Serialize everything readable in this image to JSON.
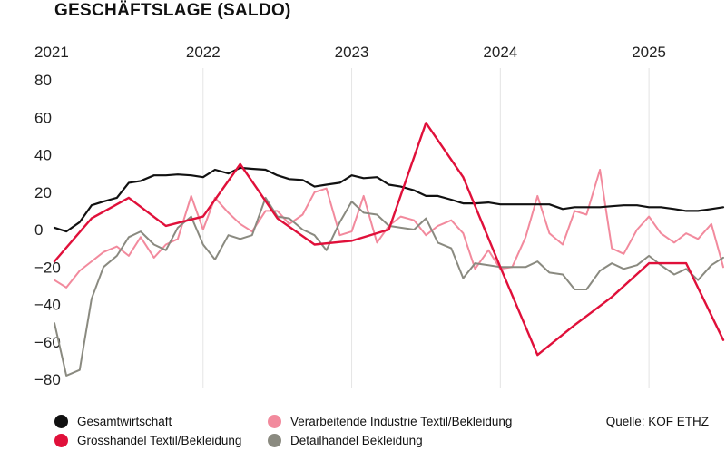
{
  "title": "GESCHÄFTSLAGE (SALDO)",
  "source": "Quelle: KOF ETHZ",
  "chart_data": {
    "type": "line",
    "title": "GESCHÄFTSLAGE (SALDO)",
    "x_ticks": [
      "2021",
      "2022",
      "2023",
      "2024",
      "2025"
    ],
    "x_range": [
      2021.0,
      2025.5
    ],
    "ylim": [
      -80,
      80
    ],
    "y_ticks": [
      80,
      60,
      40,
      20,
      0,
      -20,
      -40,
      -60,
      -80
    ],
    "grid": "vertical year lines",
    "legend_position": "bottom",
    "series": [
      {
        "name": "Gesamtwirtschaft",
        "color": "#111111",
        "x": [
          2021.0,
          2021.08,
          2021.17,
          2021.25,
          2021.33,
          2021.42,
          2021.5,
          2021.58,
          2021.67,
          2021.75,
          2021.83,
          2021.92,
          2022.0,
          2022.08,
          2022.17,
          2022.25,
          2022.33,
          2022.42,
          2022.5,
          2022.58,
          2022.67,
          2022.75,
          2022.83,
          2022.92,
          2023.0,
          2023.08,
          2023.17,
          2023.25,
          2023.33,
          2023.42,
          2023.5,
          2023.58,
          2023.67,
          2023.75,
          2023.83,
          2023.92,
          2024.0,
          2024.08,
          2024.17,
          2024.25,
          2024.33,
          2024.42,
          2024.5,
          2024.58,
          2024.67,
          2024.75,
          2024.83,
          2024.92,
          2025.0,
          2025.08,
          2025.17,
          2025.25,
          2025.33,
          2025.42,
          2025.5
        ],
        "values": [
          1,
          -1,
          4,
          13,
          15,
          17,
          25,
          26,
          29,
          29,
          29.5,
          29,
          28,
          32,
          30,
          33,
          32.5,
          32,
          29,
          27,
          26.5,
          23,
          24,
          25,
          29,
          27.5,
          28,
          24,
          23,
          21,
          18,
          18,
          16,
          14,
          14,
          14.5,
          13.5,
          13.5,
          13.5,
          13.5,
          13.5,
          11,
          12,
          12,
          12,
          12.5,
          13,
          13,
          12,
          12,
          11,
          10,
          10,
          11,
          12
        ]
      },
      {
        "name": "Grosshandel Textil/Bekleidung",
        "color": "#e0103a",
        "x": [
          2021.0,
          2021.25,
          2021.5,
          2021.75,
          2022.0,
          2022.25,
          2022.5,
          2022.75,
          2023.0,
          2023.25,
          2023.5,
          2023.75,
          2024.0,
          2024.25,
          2024.5,
          2024.75,
          2025.0,
          2025.25,
          2025.5
        ],
        "values": [
          -17,
          6,
          17,
          2,
          7,
          35,
          6,
          -8,
          -6,
          0,
          57,
          28,
          -20,
          -67,
          -51,
          -36,
          -18,
          -18,
          -59
        ]
      },
      {
        "name": "Verarbeitende Industrie Textil/Bekleidung",
        "color": "#f28a9d",
        "x": [
          2021.0,
          2021.08,
          2021.17,
          2021.25,
          2021.33,
          2021.42,
          2021.5,
          2021.58,
          2021.67,
          2021.75,
          2021.83,
          2021.92,
          2022.0,
          2022.08,
          2022.17,
          2022.25,
          2022.33,
          2022.42,
          2022.5,
          2022.58,
          2022.67,
          2022.75,
          2022.83,
          2022.92,
          2023.0,
          2023.08,
          2023.17,
          2023.25,
          2023.33,
          2023.42,
          2023.5,
          2023.58,
          2023.67,
          2023.75,
          2023.83,
          2023.92,
          2024.0,
          2024.08,
          2024.17,
          2024.25,
          2024.33,
          2024.42,
          2024.5,
          2024.58,
          2024.67,
          2024.75,
          2024.83,
          2024.92,
          2025.0,
          2025.08,
          2025.17,
          2025.25,
          2025.33,
          2025.42,
          2025.5
        ],
        "values": [
          -27,
          -31,
          -22,
          -17,
          -12,
          -9,
          -14,
          -4,
          -15,
          -8,
          -5,
          18,
          0,
          17,
          9,
          3,
          -1,
          10,
          10,
          3,
          8,
          20,
          22,
          -3,
          -1,
          18,
          -7,
          2,
          7,
          5,
          -3,
          2,
          5,
          -2,
          -21,
          -11,
          -21,
          -20,
          -4,
          18,
          -2,
          -8,
          10,
          8,
          32,
          -10,
          -13,
          0,
          7,
          -2,
          -7,
          -2,
          -5,
          3,
          -20
        ]
      },
      {
        "name": "Detailhandel Bekleidung",
        "color": "#8a8a80",
        "x": [
          2021.0,
          2021.08,
          2021.17,
          2021.25,
          2021.33,
          2021.42,
          2021.5,
          2021.58,
          2021.67,
          2021.75,
          2021.83,
          2021.92,
          2022.0,
          2022.08,
          2022.17,
          2022.25,
          2022.33,
          2022.42,
          2022.5,
          2022.58,
          2022.67,
          2022.75,
          2022.83,
          2022.92,
          2023.0,
          2023.08,
          2023.17,
          2023.25,
          2023.33,
          2023.42,
          2023.5,
          2023.58,
          2023.67,
          2023.75,
          2023.83,
          2023.92,
          2024.0,
          2024.08,
          2024.17,
          2024.25,
          2024.33,
          2024.42,
          2024.5,
          2024.58,
          2024.67,
          2024.75,
          2024.83,
          2024.92,
          2025.0,
          2025.08,
          2025.17,
          2025.25,
          2025.33,
          2025.42,
          2025.5
        ],
        "values": [
          -50,
          -78,
          -75,
          -37,
          -20,
          -14,
          -4,
          -1,
          -8,
          -11,
          1,
          7,
          -8,
          -16,
          -3,
          -5,
          -3,
          17,
          7,
          6,
          0,
          -3,
          -11,
          4,
          15,
          9,
          8,
          2,
          1,
          0,
          6,
          -7,
          -10,
          -26,
          -18,
          -19,
          -20,
          -20,
          -20,
          -17,
          -23,
          -24,
          -32,
          -32,
          -22,
          -18,
          -21,
          -19,
          -14,
          -19,
          -24,
          -21,
          -27,
          -19,
          -15
        ]
      }
    ]
  }
}
